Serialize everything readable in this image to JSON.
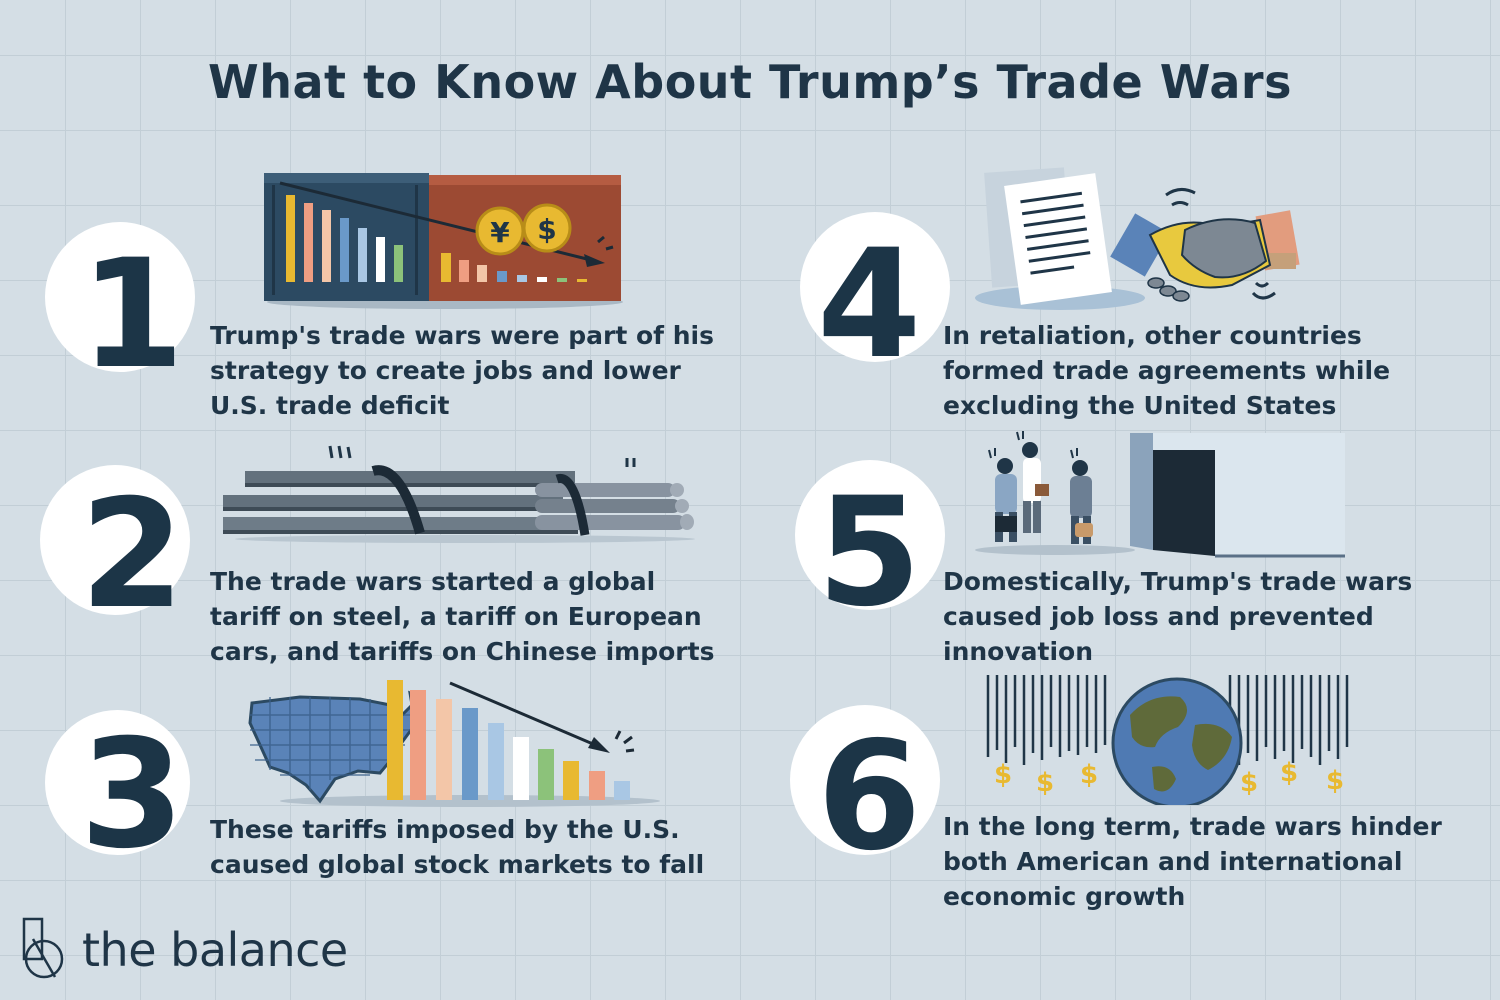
{
  "title": "What to Know About Trump’s Trade Wars",
  "items": [
    {
      "number": "1",
      "text": "Trump's trade wars were part of his strategy to create jobs and lower U.S. trade deficit"
    },
    {
      "number": "2",
      "text": "The trade wars started a global tariff on steel, a tariff on European cars, and tariffs on Chinese imports"
    },
    {
      "number": "3",
      "text": "These tariffs imposed by the U.S. caused global stock markets to fall"
    },
    {
      "number": "4",
      "text": "In retaliation, other countries formed trade agreements while excluding the United States"
    },
    {
      "number": "5",
      "text": "Domestically, Trump's trade wars caused job loss and prevented innovation"
    },
    {
      "number": "6",
      "text": "In the long term, trade wars hinder both American and international economic growth"
    }
  ],
  "currency_symbols": {
    "yen": "¥",
    "dollar": "$"
  },
  "brand": {
    "name": "the balance"
  },
  "colors": {
    "background": "#d4dee5",
    "text": "#1f3547",
    "container_blue": "#2c4a62",
    "container_red": "#9c4a33",
    "gold": "#e8b931"
  }
}
